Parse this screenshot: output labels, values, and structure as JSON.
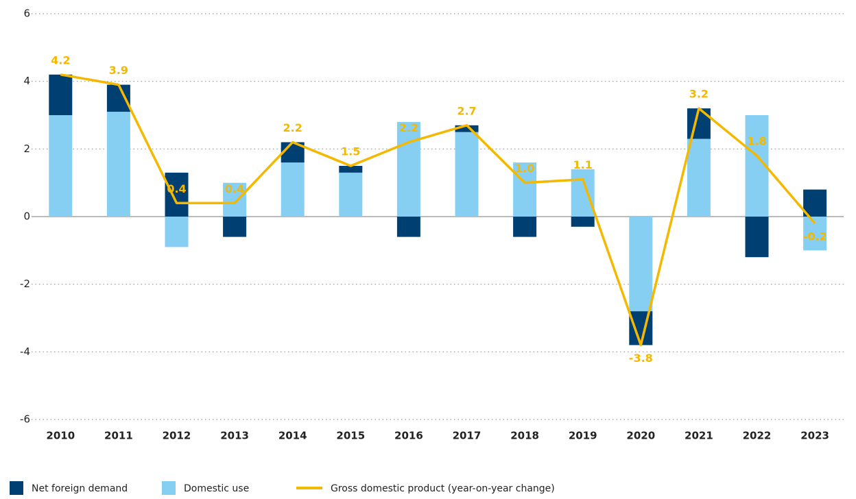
{
  "chart_data": {
    "type": "bar",
    "categories": [
      "2010",
      "2011",
      "2012",
      "2013",
      "2014",
      "2015",
      "2016",
      "2017",
      "2018",
      "2019",
      "2020",
      "2021",
      "2022",
      "2023"
    ],
    "series": [
      {
        "name": "Net foreign demand",
        "type": "bar",
        "color": "#003f72",
        "values": [
          1.2,
          0.8,
          1.3,
          -0.6,
          0.6,
          0.2,
          -0.6,
          0.2,
          -0.6,
          -0.3,
          -1.0,
          0.9,
          -1.2,
          0.8
        ]
      },
      {
        "name": "Domestic use",
        "type": "bar",
        "color": "#86cff2",
        "values": [
          3.0,
          3.1,
          -0.9,
          1.0,
          1.6,
          1.3,
          2.8,
          2.5,
          1.6,
          1.4,
          -2.8,
          2.3,
          3.0,
          -1.0
        ]
      },
      {
        "name": "Gross domestic product (year-on-year change)",
        "type": "line",
        "color": "#f5b800",
        "values": [
          4.2,
          3.9,
          0.4,
          0.4,
          2.2,
          1.5,
          2.2,
          2.7,
          1.0,
          1.1,
          -3.8,
          3.2,
          1.8,
          -0.2
        ],
        "value_labels": [
          "4.2",
          "3.9",
          "0.4",
          "0.4",
          "2.2",
          "1.5",
          "2.2",
          "2.7",
          "1.0",
          "1.1",
          "-3.8",
          "3.2",
          "1.8",
          "-0.2"
        ]
      }
    ],
    "stack_order": [
      1,
      0
    ],
    "ylim": [
      -6,
      6
    ],
    "yticks": [
      -6,
      -4,
      -2,
      0,
      2,
      4,
      6
    ],
    "grid": true,
    "legend": "bottom"
  }
}
